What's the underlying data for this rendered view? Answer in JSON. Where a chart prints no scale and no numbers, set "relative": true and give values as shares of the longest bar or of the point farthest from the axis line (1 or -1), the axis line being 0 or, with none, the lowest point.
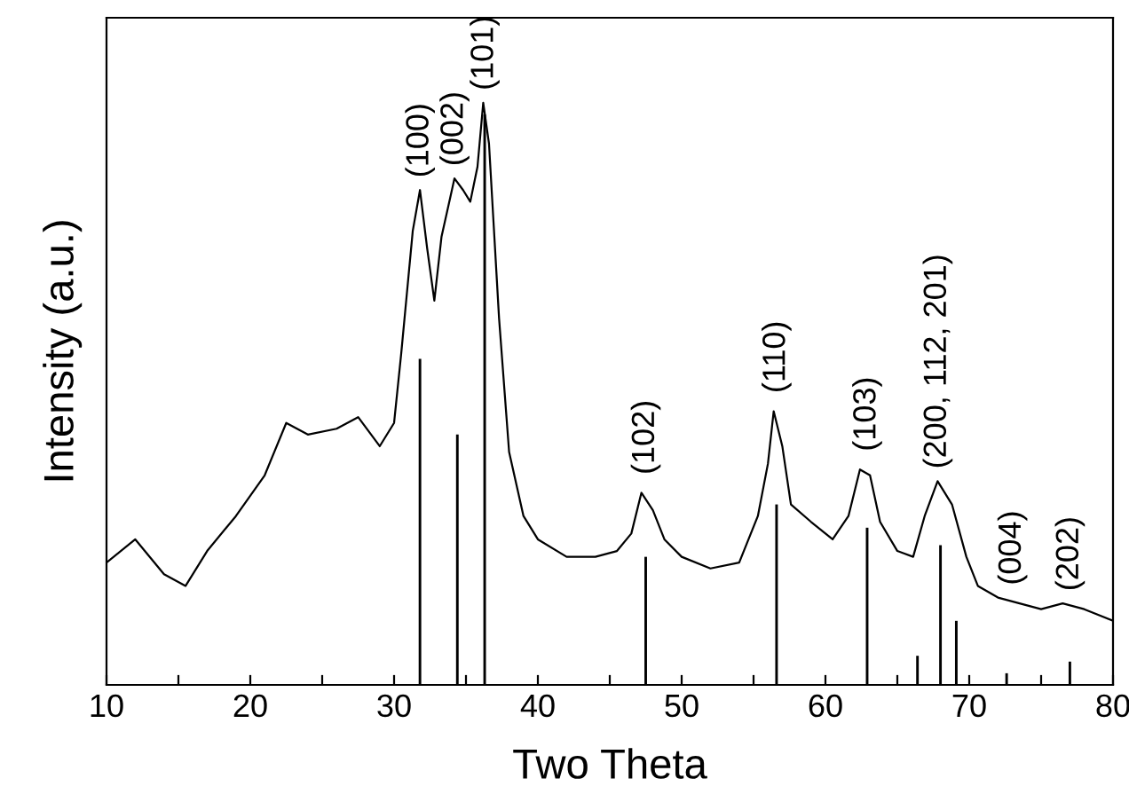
{
  "chart_data": {
    "type": "line",
    "relative": true,
    "xlabel": "Two Theta",
    "ylabel": "Intensity (a.u.)",
    "xlim": [
      10,
      80
    ],
    "xticks": [
      10,
      {
        "value": 15,
        "label": null
      },
      20,
      {
        "value": 25,
        "label": null
      },
      30,
      {
        "value": 35,
        "label": null
      },
      40,
      {
        "value": 45,
        "label": null
      },
      50,
      {
        "value": 55,
        "label": null
      },
      60,
      {
        "value": 65,
        "label": null
      },
      70,
      {
        "value": 75,
        "label": null
      },
      80
    ],
    "grid": false,
    "legend": false,
    "series": [
      {
        "color": "#000000",
        "x": [
          10,
          12,
          14,
          15.5,
          17,
          19,
          21,
          22.5,
          24,
          26,
          27.5,
          29,
          30,
          30.5,
          31.3,
          31.8,
          32.3,
          32.8,
          33.3,
          34.2,
          34.8,
          35.3,
          35.8,
          36.2,
          36.6,
          37.3,
          38,
          39,
          40,
          42,
          44,
          45.5,
          46.5,
          47.2,
          48,
          48.8,
          50,
          52,
          54,
          55.3,
          56,
          56.4,
          57,
          57.6,
          59,
          60.5,
          61.6,
          62.4,
          63.1,
          63.8,
          65,
          66.1,
          66.9,
          67.8,
          68.8,
          69.8,
          70.6,
          72,
          73.5,
          75,
          76.5,
          78,
          80
        ],
        "values": [
          0.21,
          0.25,
          0.19,
          0.17,
          0.23,
          0.29,
          0.36,
          0.45,
          0.43,
          0.44,
          0.46,
          0.41,
          0.45,
          0.57,
          0.78,
          0.85,
          0.75,
          0.66,
          0.77,
          0.87,
          0.85,
          0.83,
          0.89,
          1.0,
          0.93,
          0.63,
          0.4,
          0.29,
          0.25,
          0.22,
          0.22,
          0.23,
          0.26,
          0.33,
          0.3,
          0.25,
          0.22,
          0.2,
          0.21,
          0.29,
          0.38,
          0.47,
          0.41,
          0.31,
          0.28,
          0.25,
          0.29,
          0.37,
          0.36,
          0.28,
          0.23,
          0.22,
          0.29,
          0.35,
          0.31,
          0.22,
          0.17,
          0.15,
          0.14,
          0.13,
          0.14,
          0.13,
          0.11
        ]
      },
      {
        "type": "bar",
        "color": "#000000",
        "x": [
          31.8,
          34.4,
          36.3,
          47.5,
          56.6,
          62.9,
          66.4,
          68.0,
          69.1,
          72.6,
          77.0
        ],
        "values": [
          0.56,
          0.43,
          0.98,
          0.22,
          0.31,
          0.27,
          0.05,
          0.24,
          0.11,
          0.02,
          0.04
        ]
      }
    ],
    "annotations": [
      {
        "text": "(100)",
        "x": 31.8,
        "y": 0.85
      },
      {
        "text": "(002)",
        "x": 34.2,
        "y": 0.87
      },
      {
        "text": "(101)",
        "x": 36.3,
        "y": 1.0
      },
      {
        "text": "(102)",
        "x": 47.5,
        "y": 0.34
      },
      {
        "text": "(110)",
        "x": 56.6,
        "y": 0.48
      },
      {
        "text": "(103)",
        "x": 62.9,
        "y": 0.38
      },
      {
        "text": "(200, 112, 201)",
        "x": 67.8,
        "y": 0.35
      },
      {
        "text": "(004)",
        "x": 73.0,
        "y": 0.15
      },
      {
        "text": "(202)",
        "x": 77.0,
        "y": 0.14
      }
    ]
  }
}
